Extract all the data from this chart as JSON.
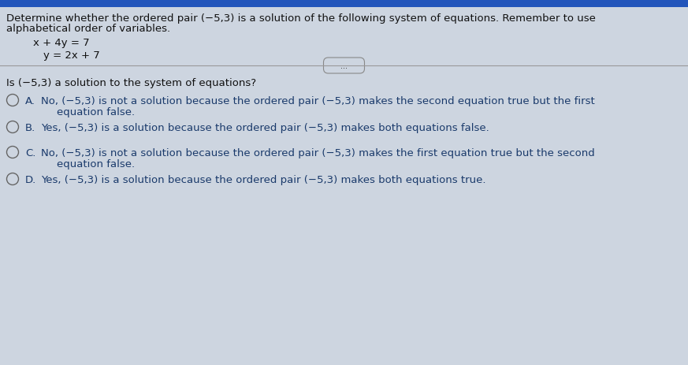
{
  "bg_color": "#cdd5e0",
  "top_bar_color": "#2255bb",
  "text_color": "#111111",
  "blue_text_color": "#1a3a6b",
  "header_line1": "Determine whether the ordered pair (−5,3) is a solution of the following system of equations. Remember to use",
  "header_line2": "alphabetical order of variables.",
  "eq1": "x + 4y = 7",
  "eq2": "y = 2x + 7",
  "divider_button_text": "...",
  "question": "Is (−5,3) a solution to the system of equations?",
  "options": [
    {
      "label": "A.",
      "line1": "No, (−5,3) is not a solution because the ordered pair (−5,3) makes the second equation true but the first",
      "line2": "equation false."
    },
    {
      "label": "B.",
      "line1": "Yes, (−5,3) is a solution because the ordered pair (−5,3) makes both equations false.",
      "line2": ""
    },
    {
      "label": "C.",
      "line1": "No, (−5,3) is not a solution because the ordered pair (−5,3) makes the first equation true but the second",
      "line2": "equation false."
    },
    {
      "label": "D.",
      "line1": "Yes, (−5,3) is a solution because the ordered pair (−5,3) makes both equations true.",
      "line2": ""
    }
  ],
  "figsize": [
    8.73,
    4.64
  ],
  "dpi": 100
}
